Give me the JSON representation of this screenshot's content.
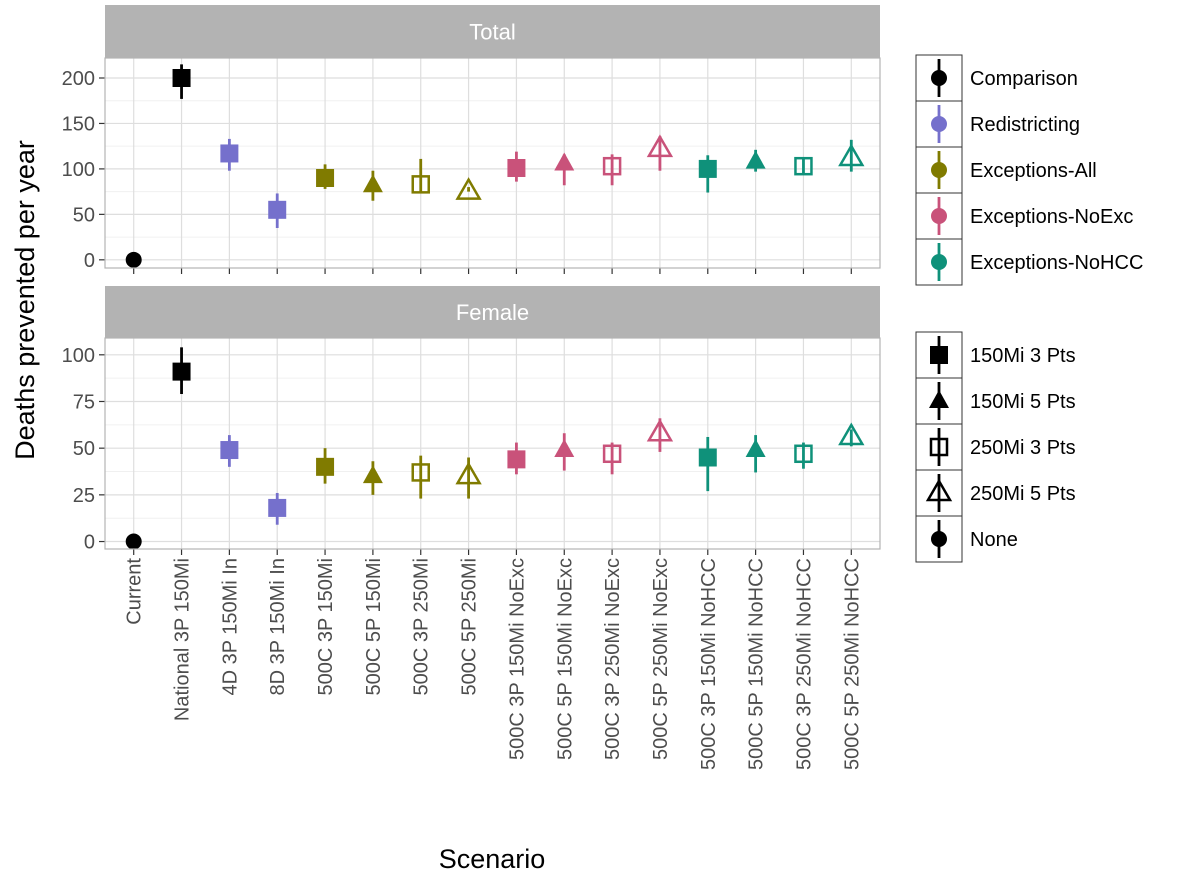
{
  "chart_data": {
    "type": "scatter",
    "xlabel": "Scenario",
    "ylabel": "Deaths prevented per year",
    "categories": [
      "Current",
      "National 3P 150Mi",
      "4D 3P 150Mi In",
      "8D 3P 150Mi In",
      "500C 3P 150Mi",
      "500C 5P 150Mi",
      "500C 3P 250Mi",
      "500C 5P 250Mi",
      "500C 3P 150Mi NoExc",
      "500C 5P 150Mi NoExc",
      "500C 3P 250Mi NoExc",
      "500C 5P 250Mi NoExc",
      "500C 3P 150Mi NoHCC",
      "500C 5P 150Mi NoHCC",
      "500C 3P 250Mi NoHCC",
      "500C 5P 250Mi NoHCC"
    ],
    "group_of_category": [
      "Comparison",
      "Comparison",
      "Redistricting",
      "Redistricting",
      "Exceptions-All",
      "Exceptions-All",
      "Exceptions-All",
      "Exceptions-All",
      "Exceptions-NoExc",
      "Exceptions-NoExc",
      "Exceptions-NoExc",
      "Exceptions-NoExc",
      "Exceptions-NoHCC",
      "Exceptions-NoHCC",
      "Exceptions-NoHCC",
      "Exceptions-NoHCC"
    ],
    "shape_of_category": [
      "None",
      "150Mi 3 Pts",
      "150Mi 3 Pts",
      "150Mi 3 Pts",
      "150Mi 3 Pts",
      "150Mi 5 Pts",
      "250Mi 3 Pts",
      "250Mi 5 Pts",
      "150Mi 3 Pts",
      "150Mi 5 Pts",
      "250Mi 3 Pts",
      "250Mi 5 Pts",
      "150Mi 3 Pts",
      "150Mi 5 Pts",
      "250Mi 3 Pts",
      "250Mi 5 Pts"
    ],
    "panels": [
      {
        "title": "Total",
        "ylim": [
          -9,
          222
        ],
        "yticks": [
          0,
          50,
          100,
          150,
          200
        ],
        "y": [
          0,
          200,
          117,
          55,
          90,
          82,
          83,
          75,
          101,
          106,
          103,
          122,
          100,
          108,
          103,
          112
        ],
        "lower": [
          0,
          177,
          98,
          35,
          78,
          65,
          75,
          75,
          86,
          82,
          82,
          98,
          74,
          97,
          94,
          97
        ],
        "upper": [
          0,
          215,
          133,
          73,
          105,
          98,
          111,
          80,
          119,
          116,
          116,
          136,
          115,
          121,
          113,
          132
        ]
      },
      {
        "title": "Female",
        "ylim": [
          -4,
          109
        ],
        "yticks": [
          0,
          25,
          50,
          75,
          100
        ],
        "y": [
          0,
          91,
          49,
          18,
          40,
          35,
          37,
          35,
          44,
          49,
          47,
          58,
          45,
          49,
          47,
          56
        ],
        "lower": [
          0,
          79,
          40,
          9,
          31,
          25,
          23,
          23,
          36,
          38,
          36,
          48,
          27,
          37,
          39,
          51
        ],
        "upper": [
          0,
          104,
          57,
          26,
          50,
          43,
          46,
          45,
          53,
          58,
          53,
          66,
          56,
          57,
          53,
          60
        ]
      }
    ],
    "legends": [
      {
        "title": "",
        "entries": [
          {
            "label": "Comparison",
            "color": "#000000",
            "shape": "circle"
          },
          {
            "label": "Redistricting",
            "color": "#7570cc",
            "shape": "circle"
          },
          {
            "label": "Exceptions-All",
            "color": "#807b00",
            "shape": "circle"
          },
          {
            "label": "Exceptions-NoExc",
            "color": "#c9527a",
            "shape": "circle"
          },
          {
            "label": "Exceptions-NoHCC",
            "color": "#0f917a",
            "shape": "circle"
          }
        ]
      },
      {
        "title": "",
        "entries": [
          {
            "label": "150Mi 3 Pts",
            "color": "#000000",
            "shape": "filled-square"
          },
          {
            "label": "150Mi 5 Pts",
            "color": "#000000",
            "shape": "filled-triangle"
          },
          {
            "label": "250Mi 3 Pts",
            "color": "#000000",
            "shape": "open-square"
          },
          {
            "label": "250Mi 5 Pts",
            "color": "#000000",
            "shape": "open-triangle"
          },
          {
            "label": "None",
            "color": "#000000",
            "shape": "circle"
          }
        ]
      }
    ],
    "group_colors": {
      "Comparison": "#000000",
      "Redistricting": "#7570cc",
      "Exceptions-All": "#807b00",
      "Exceptions-NoExc": "#c9527a",
      "Exceptions-NoHCC": "#0f917a"
    },
    "shape_map": {
      "None": "circle",
      "150Mi 3 Pts": "filled-square",
      "150Mi 5 Pts": "filled-triangle",
      "250Mi 3 Pts": "open-square",
      "250Mi 5 Pts": "open-triangle"
    },
    "grid": true,
    "legend_position": "right",
    "strip_color": "#b3b3b3",
    "grid_color": "#dedede"
  }
}
